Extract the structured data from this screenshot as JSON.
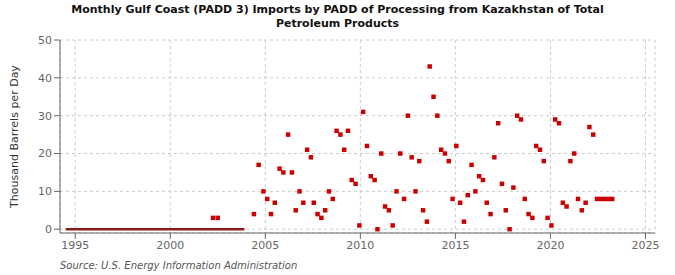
{
  "chart_data": {
    "type": "scatter",
    "title": "Monthly Gulf Coast (PADD 3) Imports by PADD of Processing from Kazakhstan of Total\nPetroleum Products",
    "ylabel": "Thousand Barrels per Day",
    "annotations": [
      "Source: U.S. Energy Information Administration"
    ],
    "xlim": [
      1994.2,
      2025.5
    ],
    "ylim": [
      -1,
      50
    ],
    "xticks": [
      1995,
      2000,
      2005,
      2010,
      2015,
      2020,
      2025
    ],
    "yticks": [
      0,
      10,
      20,
      30,
      40,
      50
    ],
    "grid": true,
    "series": [
      {
        "type": "line",
        "color": "#8b1a1a",
        "line_style": "solid",
        "x": [
          1994.5,
          2003.9
        ],
        "values": [
          0,
          0
        ]
      },
      {
        "type": "scatter",
        "color": "#cc0000",
        "marker": "square",
        "x": [
          2002.25,
          2002.5,
          2004.4,
          2004.65,
          2004.9,
          2005.1,
          2005.3,
          2005.5,
          2005.75,
          2005.95,
          2006.2,
          2006.4,
          2006.6,
          2006.8,
          2007.0,
          2007.2,
          2007.4,
          2007.55,
          2007.75,
          2007.95,
          2008.15,
          2008.35,
          2008.55,
          2008.75,
          2008.95,
          2009.15,
          2009.35,
          2009.55,
          2009.75,
          2009.95,
          2010.15,
          2010.35,
          2010.55,
          2010.75,
          2010.9,
          2011.1,
          2011.3,
          2011.5,
          2011.7,
          2011.9,
          2012.1,
          2012.3,
          2012.5,
          2012.7,
          2012.9,
          2013.1,
          2013.3,
          2013.5,
          2013.65,
          2013.85,
          2014.05,
          2014.25,
          2014.45,
          2014.65,
          2014.85,
          2015.05,
          2015.25,
          2015.45,
          2015.65,
          2015.85,
          2016.05,
          2016.25,
          2016.45,
          2016.65,
          2016.85,
          2017.05,
          2017.25,
          2017.45,
          2017.65,
          2017.85,
          2018.05,
          2018.25,
          2018.45,
          2018.65,
          2018.85,
          2019.05,
          2019.25,
          2019.45,
          2019.65,
          2019.85,
          2020.05,
          2020.25,
          2020.45,
          2020.65,
          2020.85,
          2021.05,
          2021.25,
          2021.45,
          2021.65,
          2021.85,
          2022.05,
          2022.25,
          2022.45,
          2022.65,
          2022.85,
          2023.05,
          2023.25
        ],
        "values": [
          3,
          3,
          4,
          17,
          10,
          8,
          4,
          7,
          16,
          15,
          25,
          15,
          5,
          10,
          7,
          21,
          19,
          7,
          4,
          3,
          5,
          10,
          8,
          26,
          25,
          21,
          26,
          13,
          12,
          1,
          31,
          22,
          14,
          13,
          0,
          20,
          6,
          5,
          1,
          10,
          20,
          8,
          30,
          19,
          10,
          18,
          5,
          2,
          43,
          35,
          30,
          21,
          20,
          18,
          8,
          22,
          7,
          2,
          9,
          17,
          10,
          14,
          13,
          7,
          4,
          19,
          28,
          12,
          5,
          0,
          11,
          30,
          29,
          8,
          4,
          3,
          22,
          21,
          18,
          3,
          1,
          29,
          28,
          7,
          6,
          18,
          20,
          8,
          5,
          7,
          27,
          25,
          8,
          8,
          8,
          8,
          8
        ]
      }
    ]
  }
}
